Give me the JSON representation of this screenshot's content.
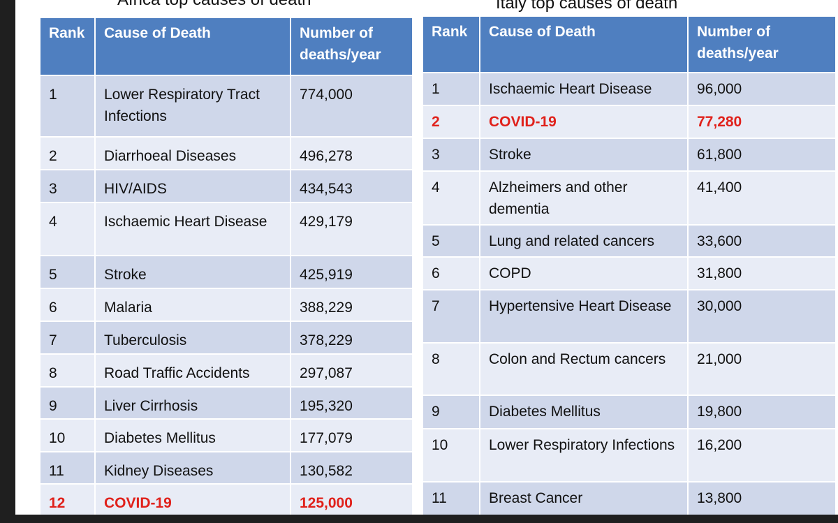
{
  "africa": {
    "title": "Africa top causes of death",
    "headers": {
      "rank": "Rank",
      "cause": "Cause of Death",
      "deaths": "Number of deaths/year"
    },
    "rows": [
      {
        "rank": "1",
        "cause": "Lower Respiratory Tract Infections",
        "deaths": "774,000"
      },
      {
        "rank": "2",
        "cause": "Diarrhoeal Diseases",
        "deaths": "496,278"
      },
      {
        "rank": "3",
        "cause": "HIV/AIDS",
        "deaths": "434,543"
      },
      {
        "rank": "4",
        "cause": "Ischaemic Heart Disease",
        "deaths": "429,179"
      },
      {
        "rank": "5",
        "cause": "Stroke",
        "deaths": "425,919"
      },
      {
        "rank": "6",
        "cause": "Malaria",
        "deaths": "388,229"
      },
      {
        "rank": "7",
        "cause": "Tuberculosis",
        "deaths": "378,229"
      },
      {
        "rank": "8",
        "cause": "Road Traffic Accidents",
        "deaths": "297,087"
      },
      {
        "rank": "9",
        "cause": "Liver Cirrhosis",
        "deaths": "195,320"
      },
      {
        "rank": "10",
        "cause": "Diabetes Mellitus",
        "deaths": "177,079"
      },
      {
        "rank": "11",
        "cause": "Kidney Diseases",
        "deaths": "130,582"
      },
      {
        "rank": "12",
        "cause": "COVID-19",
        "deaths": "125,000"
      }
    ]
  },
  "italy": {
    "title": "Italy top causes of death",
    "headers": {
      "rank": "Rank",
      "cause": "Cause of Death",
      "deaths": "Number of deaths/year"
    },
    "rows": [
      {
        "rank": "1",
        "cause": "Ischaemic Heart Disease",
        "deaths": "96,000"
      },
      {
        "rank": "2",
        "cause": "COVID-19",
        "deaths": "77,280"
      },
      {
        "rank": "3",
        "cause": "Stroke",
        "deaths": "61,800"
      },
      {
        "rank": "4",
        "cause": "Alzheimers and other dementia",
        "deaths": "41,400"
      },
      {
        "rank": "5",
        "cause": "Lung and related cancers",
        "deaths": "33,600"
      },
      {
        "rank": "6",
        "cause": "COPD",
        "deaths": "31,800"
      },
      {
        "rank": "7",
        "cause": "Hypertensive Heart Disease",
        "deaths": "30,000"
      },
      {
        "rank": "8",
        "cause": "Colon and Rectum cancers",
        "deaths": "21,000"
      },
      {
        "rank": "9",
        "cause": "Diabetes Mellitus",
        "deaths": "19,800"
      },
      {
        "rank": "10",
        "cause": "Lower Respiratory Infections",
        "deaths": "16,200"
      },
      {
        "rank": "11",
        "cause": "Breast Cancer",
        "deaths": "13,800"
      }
    ]
  },
  "colors": {
    "header_bg": "#4f7fc0",
    "row_dark": "#cfd7ea",
    "row_light": "#e8ecf6",
    "highlight_text": "#e0211b"
  }
}
